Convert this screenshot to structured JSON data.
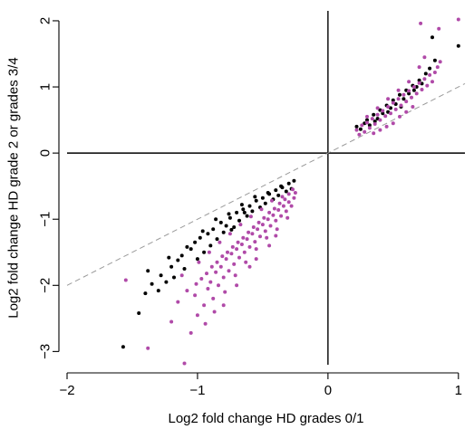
{
  "chart_data": {
    "type": "scatter",
    "xlabel": "Log2 fold change HD grades 0/1",
    "ylabel": "Log2 fold change HD grade 2 or grades 3/4",
    "xlim": [
      -2,
      1.05
    ],
    "ylim": [
      -3.2,
      2.15
    ],
    "xticks": [
      -2,
      -1,
      0,
      1
    ],
    "yticks": [
      -3,
      -2,
      -1,
      0,
      1,
      2
    ],
    "xtick_labels": [
      "−2",
      "−1",
      "0",
      "1"
    ],
    "ytick_labels": [
      "−3",
      "−2",
      "−1",
      "0",
      "1",
      "2"
    ],
    "reference_lines": [
      {
        "kind": "horizontal",
        "y": 0,
        "style": "solid",
        "color": "#000000"
      },
      {
        "kind": "vertical",
        "x": 0,
        "style": "solid",
        "color": "#000000"
      },
      {
        "kind": "identity",
        "slope": 1,
        "intercept": 0,
        "style": "dashed",
        "color": "#9a9a9a"
      }
    ],
    "grid": false,
    "series": [
      {
        "color": "#000000",
        "points": [
          [
            -1.57,
            -2.93
          ],
          [
            -1.45,
            -2.42
          ],
          [
            -1.4,
            -2.12
          ],
          [
            -1.35,
            -1.98
          ],
          [
            -1.3,
            -2.08
          ],
          [
            -1.28,
            -1.85
          ],
          [
            -1.24,
            -1.95
          ],
          [
            -1.2,
            -1.72
          ],
          [
            -1.18,
            -1.88
          ],
          [
            -1.15,
            -1.62
          ],
          [
            -1.12,
            -1.55
          ],
          [
            -1.1,
            -1.75
          ],
          [
            -1.05,
            -1.45
          ],
          [
            -1.02,
            -1.35
          ],
          [
            -1.0,
            -1.6
          ],
          [
            -0.98,
            -1.28
          ],
          [
            -0.95,
            -1.5
          ],
          [
            -0.92,
            -1.22
          ],
          [
            -0.9,
            -1.4
          ],
          [
            -0.88,
            -1.15
          ],
          [
            -0.85,
            -1.3
          ],
          [
            -0.82,
            -1.05
          ],
          [
            -0.8,
            -1.2
          ],
          [
            -0.78,
            -1.1
          ],
          [
            -0.75,
            -0.98
          ],
          [
            -0.72,
            -1.12
          ],
          [
            -0.7,
            -0.9
          ],
          [
            -0.68,
            -1.02
          ],
          [
            -0.65,
            -0.85
          ],
          [
            -0.62,
            -0.95
          ],
          [
            -0.6,
            -0.8
          ],
          [
            -0.58,
            -0.88
          ],
          [
            -0.55,
            -0.72
          ],
          [
            -0.52,
            -0.82
          ],
          [
            -0.5,
            -0.68
          ],
          [
            -0.48,
            -0.76
          ],
          [
            -0.45,
            -0.62
          ],
          [
            -0.42,
            -0.7
          ],
          [
            -0.4,
            -0.56
          ],
          [
            -0.38,
            -0.64
          ],
          [
            -0.35,
            -0.52
          ],
          [
            -0.32,
            -0.58
          ],
          [
            -0.3,
            -0.46
          ],
          [
            -0.28,
            -0.54
          ],
          [
            -0.26,
            -0.42
          ],
          [
            -1.08,
            -1.42
          ],
          [
            -0.96,
            -1.18
          ],
          [
            -0.86,
            -1.0
          ],
          [
            -0.76,
            -0.92
          ],
          [
            -0.66,
            -0.78
          ],
          [
            -0.56,
            -0.66
          ],
          [
            -0.46,
            -0.6
          ],
          [
            -0.36,
            -0.5
          ],
          [
            -1.22,
            -1.58
          ],
          [
            -1.38,
            -1.78
          ],
          [
            -0.74,
            -1.16
          ],
          [
            -0.64,
            -0.9
          ],
          [
            0.22,
            0.4
          ],
          [
            0.25,
            0.36
          ],
          [
            0.28,
            0.45
          ],
          [
            0.3,
            0.5
          ],
          [
            0.32,
            0.42
          ],
          [
            0.35,
            0.58
          ],
          [
            0.38,
            0.52
          ],
          [
            0.4,
            0.65
          ],
          [
            0.42,
            0.6
          ],
          [
            0.45,
            0.72
          ],
          [
            0.48,
            0.68
          ],
          [
            0.5,
            0.8
          ],
          [
            0.52,
            0.74
          ],
          [
            0.55,
            0.88
          ],
          [
            0.58,
            0.82
          ],
          [
            0.6,
            0.95
          ],
          [
            0.62,
            0.9
          ],
          [
            0.65,
            1.02
          ],
          [
            0.68,
            1.0
          ],
          [
            0.7,
            1.1
          ],
          [
            0.72,
            1.05
          ],
          [
            0.75,
            1.2
          ],
          [
            0.78,
            1.28
          ],
          [
            0.8,
            1.75
          ],
          [
            0.82,
            1.4
          ],
          [
            0.36,
            0.48
          ],
          [
            0.46,
            0.62
          ],
          [
            0.56,
            0.7
          ],
          [
            0.66,
            0.95
          ],
          [
            1.0,
            1.62
          ]
        ]
      },
      {
        "color": "#b04aa8",
        "points": [
          [
            -1.55,
            -1.92
          ],
          [
            -1.38,
            -2.95
          ],
          [
            -1.1,
            -3.18
          ],
          [
            -1.05,
            -2.72
          ],
          [
            -1.0,
            -2.45
          ],
          [
            -1.02,
            -2.15
          ],
          [
            -0.95,
            -2.3
          ],
          [
            -0.92,
            -2.05
          ],
          [
            -0.9,
            -1.95
          ],
          [
            -0.88,
            -2.2
          ],
          [
            -0.86,
            -1.8
          ],
          [
            -0.84,
            -2.0
          ],
          [
            -0.82,
            -1.72
          ],
          [
            -0.8,
            -1.88
          ],
          [
            -0.78,
            -1.6
          ],
          [
            -0.76,
            -1.78
          ],
          [
            -0.74,
            -1.52
          ],
          [
            -0.72,
            -1.68
          ],
          [
            -0.7,
            -1.45
          ],
          [
            -0.68,
            -1.58
          ],
          [
            -0.66,
            -1.38
          ],
          [
            -0.64,
            -1.5
          ],
          [
            -0.62,
            -1.3
          ],
          [
            -0.6,
            -1.42
          ],
          [
            -0.58,
            -1.22
          ],
          [
            -0.56,
            -1.34
          ],
          [
            -0.54,
            -1.15
          ],
          [
            -0.52,
            -1.26
          ],
          [
            -0.5,
            -1.08
          ],
          [
            -0.48,
            -1.18
          ],
          [
            -0.46,
            -1.0
          ],
          [
            -0.44,
            -1.1
          ],
          [
            -0.42,
            -0.94
          ],
          [
            -0.4,
            -1.02
          ],
          [
            -0.38,
            -0.86
          ],
          [
            -0.36,
            -0.95
          ],
          [
            -0.34,
            -0.8
          ],
          [
            -0.32,
            -0.88
          ],
          [
            -0.3,
            -0.74
          ],
          [
            -0.28,
            -0.8
          ],
          [
            -0.26,
            -0.68
          ],
          [
            -0.25,
            -0.6
          ],
          [
            -0.27,
            -0.55
          ],
          [
            -0.3,
            -0.62
          ],
          [
            -0.33,
            -0.7
          ],
          [
            -0.37,
            -0.76
          ],
          [
            -0.41,
            -0.84
          ],
          [
            -0.45,
            -0.9
          ],
          [
            -0.49,
            -0.98
          ],
          [
            -0.53,
            -1.05
          ],
          [
            -0.57,
            -1.12
          ],
          [
            -0.61,
            -1.2
          ],
          [
            -0.65,
            -1.28
          ],
          [
            -0.69,
            -1.35
          ],
          [
            -0.73,
            -1.42
          ],
          [
            -0.77,
            -1.5
          ],
          [
            -0.81,
            -1.56
          ],
          [
            -0.85,
            -1.65
          ],
          [
            -0.89,
            -1.72
          ],
          [
            -0.93,
            -1.82
          ],
          [
            -0.97,
            -1.9
          ],
          [
            -1.01,
            -1.98
          ],
          [
            -1.08,
            -2.08
          ],
          [
            -1.15,
            -2.25
          ],
          [
            -1.2,
            -2.55
          ],
          [
            -0.94,
            -2.58
          ],
          [
            -0.87,
            -2.4
          ],
          [
            -0.79,
            -2.1
          ],
          [
            -0.71,
            -1.85
          ],
          [
            -0.63,
            -1.65
          ],
          [
            -0.55,
            -1.45
          ],
          [
            -0.47,
            -1.28
          ],
          [
            -0.39,
            -1.15
          ],
          [
            -0.31,
            -0.98
          ],
          [
            -0.35,
            -0.66
          ],
          [
            -0.43,
            -0.72
          ],
          [
            -0.51,
            -0.85
          ],
          [
            -0.59,
            -0.96
          ],
          [
            -0.67,
            -1.08
          ],
          [
            -0.75,
            -1.22
          ],
          [
            -0.83,
            -1.35
          ],
          [
            -0.91,
            -1.5
          ],
          [
            -0.99,
            -1.65
          ],
          [
            -1.12,
            -1.85
          ],
          [
            -0.6,
            -1.72
          ],
          [
            -0.7,
            -2.0
          ],
          [
            -0.8,
            -2.3
          ],
          [
            -0.55,
            -1.6
          ],
          [
            -0.45,
            -1.4
          ],
          [
            -0.4,
            -1.25
          ],
          [
            0.22,
            0.35
          ],
          [
            0.24,
            0.28
          ],
          [
            0.26,
            0.42
          ],
          [
            0.28,
            0.32
          ],
          [
            0.3,
            0.46
          ],
          [
            0.32,
            0.38
          ],
          [
            0.34,
            0.52
          ],
          [
            0.36,
            0.44
          ],
          [
            0.38,
            0.58
          ],
          [
            0.4,
            0.5
          ],
          [
            0.42,
            0.64
          ],
          [
            0.44,
            0.56
          ],
          [
            0.46,
            0.7
          ],
          [
            0.48,
            0.6
          ],
          [
            0.5,
            0.76
          ],
          [
            0.52,
            0.66
          ],
          [
            0.54,
            0.82
          ],
          [
            0.56,
            0.72
          ],
          [
            0.58,
            0.88
          ],
          [
            0.6,
            0.78
          ],
          [
            0.62,
            0.94
          ],
          [
            0.64,
            0.84
          ],
          [
            0.66,
            1.0
          ],
          [
            0.68,
            0.9
          ],
          [
            0.7,
            1.06
          ],
          [
            0.72,
            0.96
          ],
          [
            0.74,
            1.12
          ],
          [
            0.76,
            1.02
          ],
          [
            0.78,
            1.18
          ],
          [
            0.8,
            1.08
          ],
          [
            0.82,
            1.22
          ],
          [
            0.84,
            1.3
          ],
          [
            0.86,
            1.38
          ],
          [
            0.74,
            1.45
          ],
          [
            0.7,
            1.3
          ],
          [
            0.35,
            0.3
          ],
          [
            0.4,
            0.35
          ],
          [
            0.45,
            0.4
          ],
          [
            0.5,
            0.45
          ],
          [
            0.55,
            0.55
          ],
          [
            0.6,
            0.62
          ],
          [
            0.65,
            0.7
          ],
          [
            0.3,
            0.55
          ],
          [
            0.38,
            0.68
          ],
          [
            0.46,
            0.82
          ],
          [
            0.54,
            0.95
          ],
          [
            0.62,
            1.08
          ],
          [
            0.85,
            1.88
          ],
          [
            0.71,
            1.96
          ],
          [
            1.0,
            2.02
          ]
        ]
      }
    ]
  }
}
